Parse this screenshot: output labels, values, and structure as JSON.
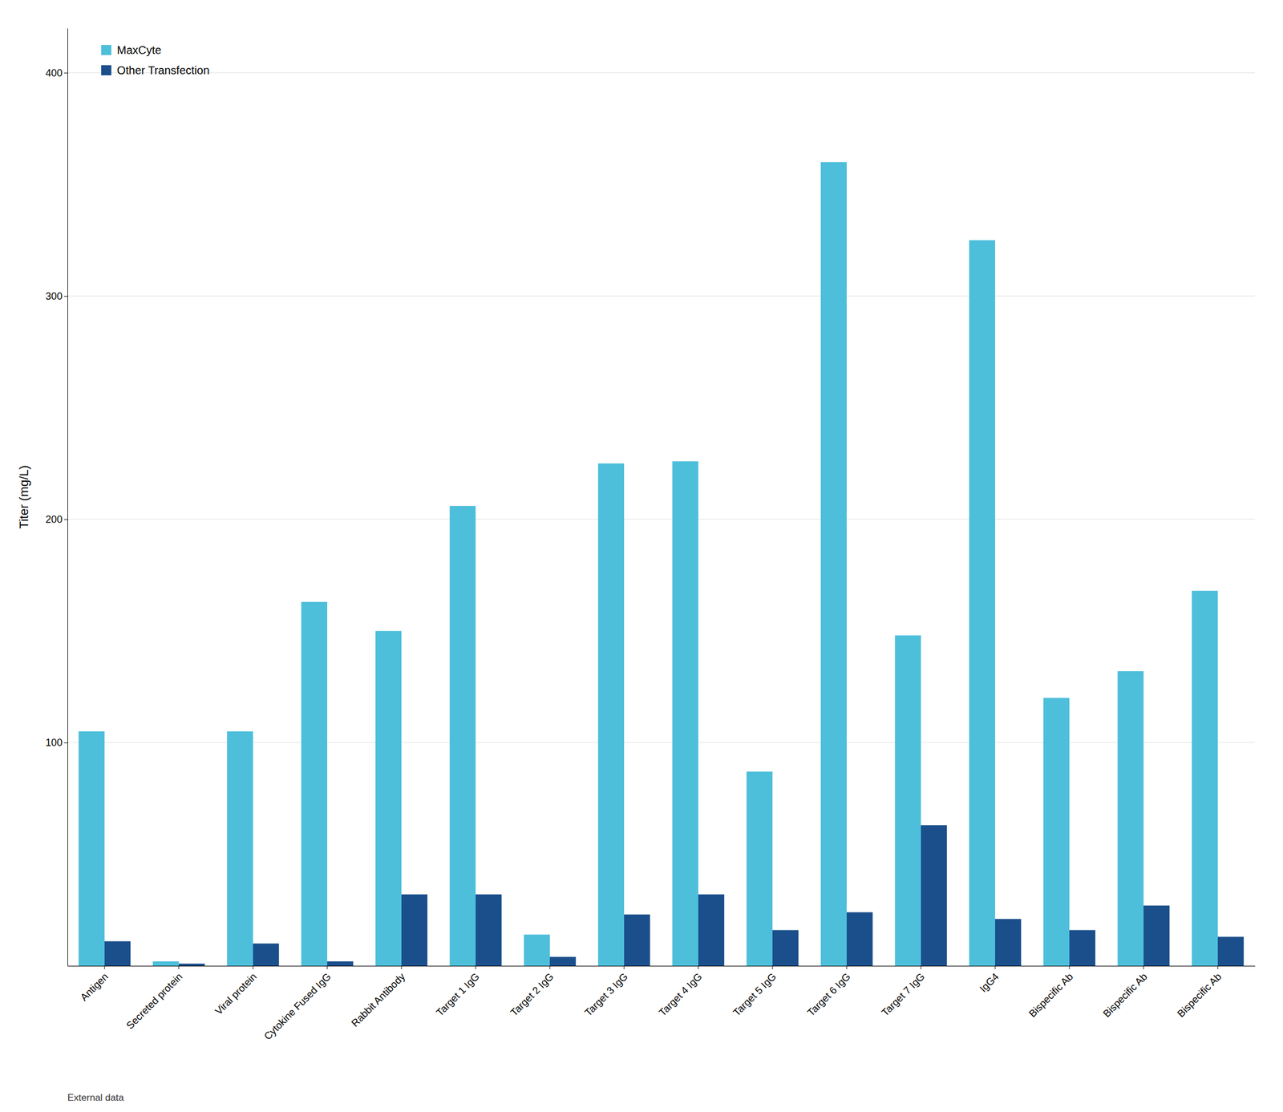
{
  "chart_data": {
    "type": "bar",
    "categories": [
      "Antigen",
      "Secreted protein",
      "Viral protein",
      "Cytokine Fused IgG",
      "Rabbit Antibody",
      "Target 1 IgG",
      "Target 2 IgG",
      "Target 3 IgG",
      "Target 4 IgG",
      "Target 5 IgG",
      "Target 6 IgG",
      "Target 7 IgG",
      "IgG4",
      "Bispecific Ab",
      "Bispecific Ab",
      "Bispecific Ab"
    ],
    "series": [
      {
        "name": "MaxCyte",
        "color": "#4DBFDB",
        "values": [
          105,
          2,
          105,
          163,
          150,
          206,
          14,
          225,
          226,
          87,
          360,
          148,
          325,
          120,
          132,
          168
        ]
      },
      {
        "name": "Other Transfection",
        "color": "#1A4F8C",
        "values": [
          11,
          1,
          10,
          2,
          32,
          32,
          4,
          23,
          32,
          16,
          24,
          63,
          21,
          16,
          27,
          13
        ]
      }
    ],
    "ylabel": "Titer (mg/L)",
    "ylim": [
      0,
      420
    ],
    "yticks": [
      100,
      200,
      300,
      400
    ],
    "grid": true,
    "legend": "upper left",
    "annotations": [
      "External data"
    ]
  }
}
